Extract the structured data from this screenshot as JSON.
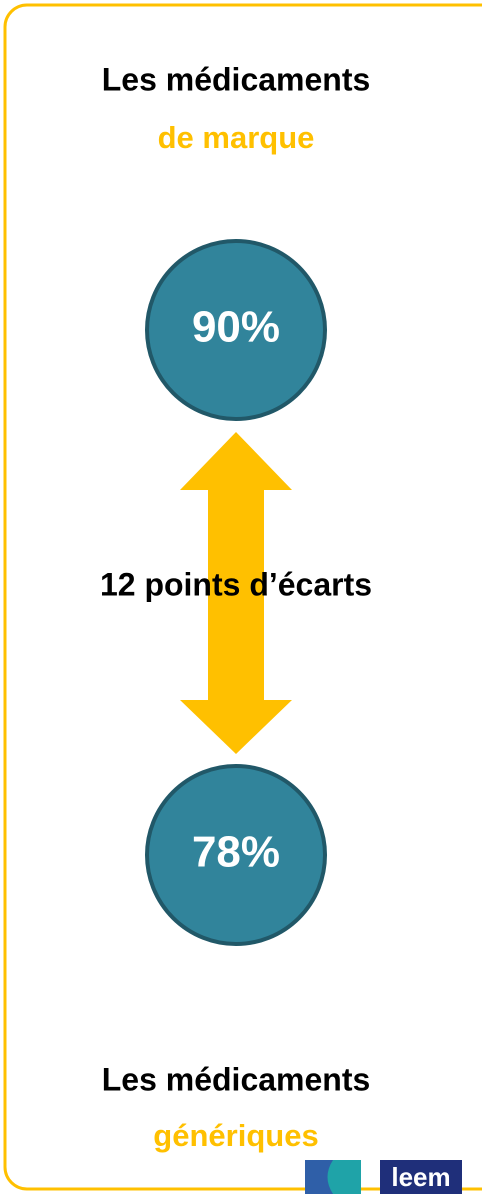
{
  "top": {
    "line1": "Les médicaments",
    "line2": "de marque"
  },
  "top_value": "90%",
  "gap": "12 points d’écarts",
  "bottom_value": "78%",
  "bottom": {
    "line1": "Les médicaments",
    "line2": "génériques"
  },
  "logo": "leem"
}
